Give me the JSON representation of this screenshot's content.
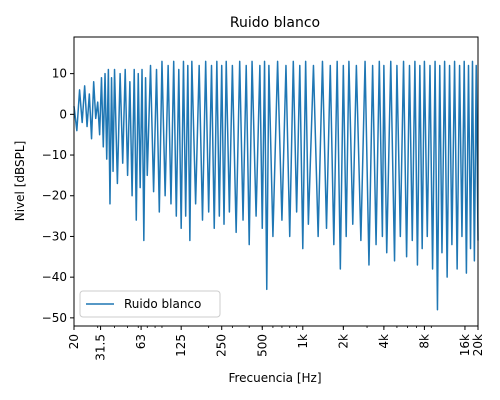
{
  "chart_data": {
    "type": "line",
    "title": "Ruido blanco",
    "xlabel": "Frecuencia [Hz]",
    "ylabel": "Nivel [dBSPL]",
    "xscale": "log",
    "xlim": [
      20,
      20000
    ],
    "ylim": [
      -52,
      19
    ],
    "x_ticks": [
      20,
      31.5,
      63,
      125,
      250,
      500,
      1000,
      2000,
      4000,
      8000,
      16000,
      20000
    ],
    "x_tick_labels": [
      "20",
      "31.5",
      "63",
      "125",
      "250",
      "500",
      "1k",
      "2k",
      "4k",
      "8k",
      "16k",
      "20k"
    ],
    "y_ticks": [
      -50,
      -40,
      -30,
      -20,
      -10,
      0,
      10
    ],
    "y_tick_labels": [
      "−50",
      "−40",
      "−30",
      "−20",
      "−10",
      "0",
      "10"
    ],
    "grid": false,
    "legend": {
      "placement": "bottom-left",
      "entries": [
        "Ruido blanco"
      ]
    },
    "series": [
      {
        "name": "Ruido blanco",
        "color": "#1f77b4",
        "points": [
          [
            20,
            2
          ],
          [
            21,
            -4
          ],
          [
            22,
            6
          ],
          [
            23,
            -2
          ],
          [
            24,
            7
          ],
          [
            25,
            -3
          ],
          [
            26,
            5
          ],
          [
            27,
            -6
          ],
          [
            28,
            8
          ],
          [
            29,
            -1
          ],
          [
            30,
            3
          ],
          [
            31,
            -5
          ],
          [
            32,
            9
          ],
          [
            33,
            -8
          ],
          [
            34,
            10
          ],
          [
            35,
            -11
          ],
          [
            36,
            11
          ],
          [
            37,
            -22
          ],
          [
            38,
            9
          ],
          [
            39,
            -14
          ],
          [
            40,
            11
          ],
          [
            42,
            -17
          ],
          [
            44,
            10
          ],
          [
            46,
            -12
          ],
          [
            48,
            11
          ],
          [
            50,
            -15
          ],
          [
            52,
            8
          ],
          [
            54,
            -20
          ],
          [
            56,
            11
          ],
          [
            58,
            -26
          ],
          [
            60,
            10
          ],
          [
            62,
            -18
          ],
          [
            64,
            11
          ],
          [
            66,
            -31
          ],
          [
            68,
            9
          ],
          [
            70,
            -15
          ],
          [
            74,
            12
          ],
          [
            78,
            -19
          ],
          [
            82,
            11
          ],
          [
            86,
            -24
          ],
          [
            90,
            13
          ],
          [
            95,
            -20
          ],
          [
            100,
            12
          ],
          [
            105,
            -22
          ],
          [
            110,
            13
          ],
          [
            115,
            -25
          ],
          [
            120,
            11
          ],
          [
            125,
            -28
          ],
          [
            130,
            13
          ],
          [
            135,
            -25
          ],
          [
            140,
            12
          ],
          [
            145,
            -31
          ],
          [
            150,
            13
          ],
          [
            160,
            -22
          ],
          [
            170,
            12
          ],
          [
            180,
            -26
          ],
          [
            190,
            13
          ],
          [
            200,
            -24
          ],
          [
            210,
            12
          ],
          [
            220,
            -28
          ],
          [
            230,
            13
          ],
          [
            240,
            -25
          ],
          [
            250,
            12
          ],
          [
            260,
            -27
          ],
          [
            270,
            13
          ],
          [
            285,
            -24
          ],
          [
            300,
            12
          ],
          [
            320,
            -29
          ],
          [
            340,
            13
          ],
          [
            360,
            -26
          ],
          [
            380,
            12
          ],
          [
            400,
            -32
          ],
          [
            420,
            13
          ],
          [
            450,
            -25
          ],
          [
            480,
            12
          ],
          [
            500,
            -28
          ],
          [
            520,
            13
          ],
          [
            540,
            -43
          ],
          [
            560,
            12
          ],
          [
            600,
            -30
          ],
          [
            650,
            13
          ],
          [
            700,
            -26
          ],
          [
            750,
            12
          ],
          [
            800,
            -30
          ],
          [
            850,
            13
          ],
          [
            900,
            -24
          ],
          [
            950,
            12
          ],
          [
            1000,
            -33
          ],
          [
            1050,
            13
          ],
          [
            1100,
            -27
          ],
          [
            1200,
            12
          ],
          [
            1300,
            -30
          ],
          [
            1400,
            13
          ],
          [
            1500,
            -28
          ],
          [
            1600,
            12
          ],
          [
            1700,
            -32
          ],
          [
            1800,
            13
          ],
          [
            1900,
            -38
          ],
          [
            2000,
            12
          ],
          [
            2100,
            -30
          ],
          [
            2200,
            13
          ],
          [
            2350,
            -27
          ],
          [
            2500,
            12
          ],
          [
            2700,
            -31
          ],
          [
            2900,
            13
          ],
          [
            3100,
            -37
          ],
          [
            3300,
            12
          ],
          [
            3500,
            -32
          ],
          [
            3700,
            13
          ],
          [
            3900,
            -30
          ],
          [
            4000,
            12
          ],
          [
            4200,
            -34
          ],
          [
            4500,
            13
          ],
          [
            4800,
            -36
          ],
          [
            5000,
            12
          ],
          [
            5300,
            -30
          ],
          [
            5600,
            13
          ],
          [
            5900,
            -35
          ],
          [
            6200,
            12
          ],
          [
            6500,
            -31
          ],
          [
            6800,
            13
          ],
          [
            7100,
            -37
          ],
          [
            7400,
            12
          ],
          [
            7700,
            -33
          ],
          [
            8000,
            13
          ],
          [
            8400,
            -30
          ],
          [
            8800,
            12
          ],
          [
            9200,
            -38
          ],
          [
            9600,
            13
          ],
          [
            10000,
            -48
          ],
          [
            10400,
            12
          ],
          [
            10800,
            -34
          ],
          [
            11300,
            13
          ],
          [
            11800,
            -40
          ],
          [
            12300,
            12
          ],
          [
            12800,
            -32
          ],
          [
            13400,
            13
          ],
          [
            14000,
            -38
          ],
          [
            14600,
            12
          ],
          [
            15200,
            -30
          ],
          [
            15800,
            13
          ],
          [
            16400,
            -39
          ],
          [
            17000,
            12
          ],
          [
            17600,
            -33
          ],
          [
            18200,
            13
          ],
          [
            18800,
            -36
          ],
          [
            19400,
            12
          ],
          [
            20000,
            -31
          ]
        ]
      }
    ]
  }
}
